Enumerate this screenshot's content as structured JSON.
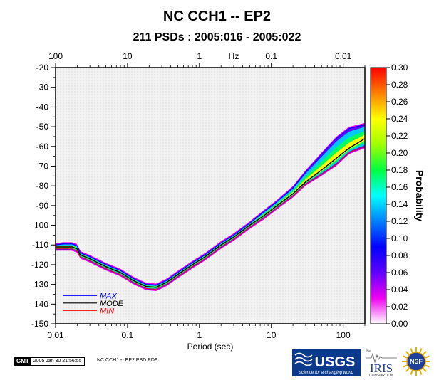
{
  "chart_data": {
    "type": "heatmap",
    "title": "NC CCH1 -- EP2",
    "subtitle": "211 PSDs : 2005:016 - 2005:022",
    "xlabel": "Period (sec)",
    "x_scale": "log",
    "xlim": [
      0.01,
      200
    ],
    "x_ticks": [
      "0.01",
      "0.1",
      "1",
      "10",
      "100"
    ],
    "x_tick_values": [
      0.01,
      0.1,
      1,
      10,
      100
    ],
    "top_axis_label": "Hz",
    "top_ticks": [
      "100",
      "10",
      "1",
      "0.1",
      "0.01"
    ],
    "top_tick_values": [
      0.01,
      0.1,
      1,
      10,
      100
    ],
    "ylim": [
      -150,
      -20
    ],
    "y_ticks": [
      "-20",
      "-30",
      "-40",
      "-50",
      "-60",
      "-70",
      "-80",
      "-90",
      "-100",
      "-110",
      "-120",
      "-130",
      "-140",
      "-150"
    ],
    "y_tick_values": [
      -20,
      -30,
      -40,
      -50,
      -60,
      -70,
      -80,
      -90,
      -100,
      -110,
      -120,
      -130,
      -140,
      -150
    ],
    "colorbar": {
      "label": "Probability",
      "range": [
        0,
        0.3
      ],
      "ticks": [
        "0.30",
        "0.28",
        "0.26",
        "0.24",
        "0.22",
        "0.20",
        "0.18",
        "0.16",
        "0.14",
        "0.12",
        "0.10",
        "0.08",
        "0.06",
        "0.04",
        "0.02",
        "0.00"
      ],
      "tick_values": [
        0.3,
        0.28,
        0.26,
        0.24,
        0.22,
        0.2,
        0.18,
        0.16,
        0.14,
        0.12,
        0.1,
        0.08,
        0.06,
        0.04,
        0.02,
        0.0
      ],
      "colors": [
        "#ffffff",
        "#f000f0",
        "#6000ff",
        "#0000ff",
        "#0080ff",
        "#00ffff",
        "#00ff40",
        "#a0ff00",
        "#ffff00",
        "#ff8000",
        "#ff0000"
      ]
    },
    "legend": {
      "placement": "bottom-left",
      "entries": [
        {
          "label": "MAX",
          "color": "#0000ff"
        },
        {
          "label": "MODE",
          "color": "#000000"
        },
        {
          "label": "MIN",
          "color": "#ff0000"
        }
      ]
    },
    "series": [
      {
        "name": "MODE",
        "color": "#000000",
        "points": [
          [
            0.01,
            -111
          ],
          [
            0.013,
            -111
          ],
          [
            0.017,
            -111
          ],
          [
            0.02,
            -112
          ],
          [
            0.022,
            -115
          ],
          [
            0.03,
            -117
          ],
          [
            0.05,
            -121
          ],
          [
            0.08,
            -124
          ],
          [
            0.12,
            -128
          ],
          [
            0.18,
            -131
          ],
          [
            0.25,
            -131.5
          ],
          [
            0.35,
            -129
          ],
          [
            0.5,
            -125
          ],
          [
            0.8,
            -120
          ],
          [
            1.2,
            -116
          ],
          [
            2,
            -110
          ],
          [
            3,
            -106
          ],
          [
            5,
            -100
          ],
          [
            8,
            -95
          ],
          [
            12,
            -90
          ],
          [
            20,
            -84
          ],
          [
            30,
            -78
          ],
          [
            50,
            -72
          ],
          [
            80,
            -66
          ],
          [
            120,
            -61
          ],
          [
            200,
            -56
          ]
        ]
      },
      {
        "name": "MAX",
        "color": "#0000ff",
        "points": [
          [
            0.01,
            -110
          ],
          [
            0.013,
            -109.5
          ],
          [
            0.017,
            -109.5
          ],
          [
            0.02,
            -110.5
          ],
          [
            0.022,
            -114
          ],
          [
            0.03,
            -116
          ],
          [
            0.05,
            -120
          ],
          [
            0.08,
            -123
          ],
          [
            0.12,
            -127
          ],
          [
            0.18,
            -130
          ],
          [
            0.25,
            -130.5
          ],
          [
            0.35,
            -128
          ],
          [
            0.5,
            -124
          ],
          [
            0.8,
            -119
          ],
          [
            1.2,
            -115
          ],
          [
            2,
            -109
          ],
          [
            3,
            -105
          ],
          [
            5,
            -99
          ],
          [
            8,
            -93
          ],
          [
            12,
            -88
          ],
          [
            20,
            -81
          ],
          [
            30,
            -73
          ],
          [
            50,
            -64
          ],
          [
            80,
            -56
          ],
          [
            120,
            -51
          ],
          [
            200,
            -49
          ]
        ]
      },
      {
        "name": "MIN",
        "color": "#ff0000",
        "points": [
          [
            0.01,
            -112
          ],
          [
            0.013,
            -112
          ],
          [
            0.017,
            -112
          ],
          [
            0.02,
            -113
          ],
          [
            0.022,
            -116
          ],
          [
            0.03,
            -118
          ],
          [
            0.05,
            -122
          ],
          [
            0.08,
            -125
          ],
          [
            0.12,
            -129
          ],
          [
            0.18,
            -132
          ],
          [
            0.25,
            -132.5
          ],
          [
            0.35,
            -130
          ],
          [
            0.5,
            -126
          ],
          [
            0.8,
            -121
          ],
          [
            1.2,
            -117
          ],
          [
            2,
            -111
          ],
          [
            3,
            -107
          ],
          [
            5,
            -101
          ],
          [
            8,
            -96
          ],
          [
            12,
            -91
          ],
          [
            20,
            -85
          ],
          [
            30,
            -79
          ],
          [
            50,
            -74
          ],
          [
            80,
            -69
          ],
          [
            120,
            -63
          ],
          [
            200,
            -60
          ]
        ]
      }
    ]
  },
  "footer": {
    "gmt_logo": "GMT",
    "timestamp": "2005 Jan 30 21:56:55",
    "plot_label": "NC CCH1 -- EP2 PSD PDF",
    "usgs_text": "USGS",
    "usgs_tagline": "science for a changing world",
    "iris_small": "the",
    "iris_text": "IRIS",
    "iris_sub": "CONSORTIUM",
    "nsf_text": "NSF"
  }
}
